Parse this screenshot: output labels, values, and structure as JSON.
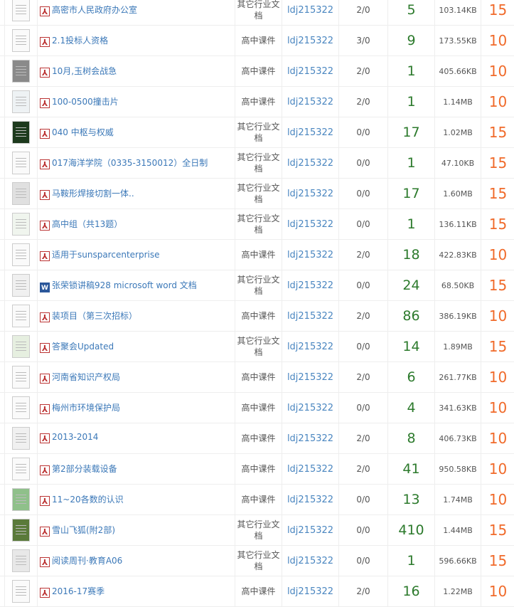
{
  "colors": {
    "link": "#3b78b8",
    "count": "#2c7a2c",
    "points": "#f06a2a"
  },
  "rows": [
    {
      "title": "高密市人民政府办公室",
      "type": "pdf",
      "category": "其它行业文档",
      "user": "ldj215322",
      "ratio": "2/0",
      "count": "5",
      "size": "103.14KB",
      "points": "15",
      "thumb": "#fafafa"
    },
    {
      "title": "2.1投标人资格",
      "type": "pdf",
      "category": "高中课件",
      "user": "ldj215322",
      "ratio": "3/0",
      "count": "9",
      "size": "173.55KB",
      "points": "10",
      "thumb": "#fafafa"
    },
    {
      "title": "10月,玉树会战急",
      "type": "pdf",
      "category": "高中课件",
      "user": "ldj215322",
      "ratio": "2/0",
      "count": "1",
      "size": "405.66KB",
      "points": "10",
      "thumb": "#8a8a8a"
    },
    {
      "title": "100-0500撞击片",
      "type": "pdf",
      "category": "高中课件",
      "user": "ldj215322",
      "ratio": "2/0",
      "count": "1",
      "size": "1.14MB",
      "points": "10",
      "thumb": "#eef2f4"
    },
    {
      "title": "040 中枢与权威",
      "type": "pdf",
      "category": "其它行业文档",
      "user": "ldj215322",
      "ratio": "0/0",
      "count": "17",
      "size": "1.02MB",
      "points": "15",
      "thumb": "#1d3a1d"
    },
    {
      "title": "017海洋学院（0335-3150012）全日制",
      "type": "pdf",
      "category": "其它行业文档",
      "user": "ldj215322",
      "ratio": "0/0",
      "count": "1",
      "size": "47.10KB",
      "points": "15",
      "thumb": "#fafafa"
    },
    {
      "title": "马鞍形焊接切割一体..",
      "type": "pdf",
      "category": "其它行业文档",
      "user": "ldj215322",
      "ratio": "0/0",
      "count": "17",
      "size": "1.60MB",
      "points": "15",
      "thumb": "#e0e0e0"
    },
    {
      "title": "高中组（共13题）",
      "type": "pdf",
      "category": "其它行业文档",
      "user": "ldj215322",
      "ratio": "0/0",
      "count": "1",
      "size": "136.11KB",
      "points": "15",
      "thumb": "#f0f5ee"
    },
    {
      "title": "适用于sunsparcenterprise",
      "type": "pdf",
      "category": "高中课件",
      "user": "ldj215322",
      "ratio": "2/0",
      "count": "18",
      "size": "422.83KB",
      "points": "10",
      "thumb": "#fafafa"
    },
    {
      "title": "张荣锁讲稿928 microsoft word 文档",
      "type": "word",
      "category": "其它行业文档",
      "user": "ldj215322",
      "ratio": "0/0",
      "count": "24",
      "size": "68.50KB",
      "points": "15",
      "thumb": "#f0f0f0"
    },
    {
      "title": "装项目（第三次招标）",
      "type": "pdf",
      "category": "高中课件",
      "user": "ldj215322",
      "ratio": "2/0",
      "count": "86",
      "size": "386.19KB",
      "points": "10",
      "thumb": "#fafafa"
    },
    {
      "title": "答聚会Updated",
      "type": "pdf",
      "category": "其它行业文档",
      "user": "ldj215322",
      "ratio": "0/0",
      "count": "14",
      "size": "1.89MB",
      "points": "15",
      "thumb": "#e6efe0"
    },
    {
      "title": "河南省知识产权局",
      "type": "pdf",
      "category": "高中课件",
      "user": "ldj215322",
      "ratio": "2/0",
      "count": "6",
      "size": "261.77KB",
      "points": "10",
      "thumb": "#fafafa"
    },
    {
      "title": "梅州市环境保护局",
      "type": "pdf",
      "category": "高中课件",
      "user": "ldj215322",
      "ratio": "0/0",
      "count": "4",
      "size": "341.63KB",
      "points": "10",
      "thumb": "#fafafa"
    },
    {
      "title": "2013-2014",
      "type": "pdf",
      "category": "高中课件",
      "user": "ldj215322",
      "ratio": "2/0",
      "count": "8",
      "size": "406.73KB",
      "points": "10",
      "thumb": "#f0f0f0"
    },
    {
      "title": "第2部分装载设备",
      "type": "pdf",
      "category": "高中课件",
      "user": "ldj215322",
      "ratio": "2/0",
      "count": "41",
      "size": "950.58KB",
      "points": "10",
      "thumb": "#fafafa"
    },
    {
      "title": "11~20各数的认识",
      "type": "pdf",
      "category": "高中课件",
      "user": "ldj215322",
      "ratio": "0/0",
      "count": "13",
      "size": "1.74MB",
      "points": "10",
      "thumb": "#8fc08a"
    },
    {
      "title": "雪山飞狐(附2部)",
      "type": "pdf",
      "category": "其它行业文档",
      "user": "ldj215322",
      "ratio": "0/0",
      "count": "410",
      "size": "1.44MB",
      "points": "15",
      "thumb": "#5a7a3a"
    },
    {
      "title": "阅读周刊·教育A06",
      "type": "pdf",
      "category": "其它行业文档",
      "user": "ldj215322",
      "ratio": "0/0",
      "count": "1",
      "size": "596.66KB",
      "points": "15",
      "thumb": "#e8e8e8"
    },
    {
      "title": "2016-17赛季",
      "type": "pdf",
      "category": "高中课件",
      "user": "ldj215322",
      "ratio": "2/0",
      "count": "16",
      "size": "1.22MB",
      "points": "10",
      "thumb": "#fafafa"
    }
  ]
}
